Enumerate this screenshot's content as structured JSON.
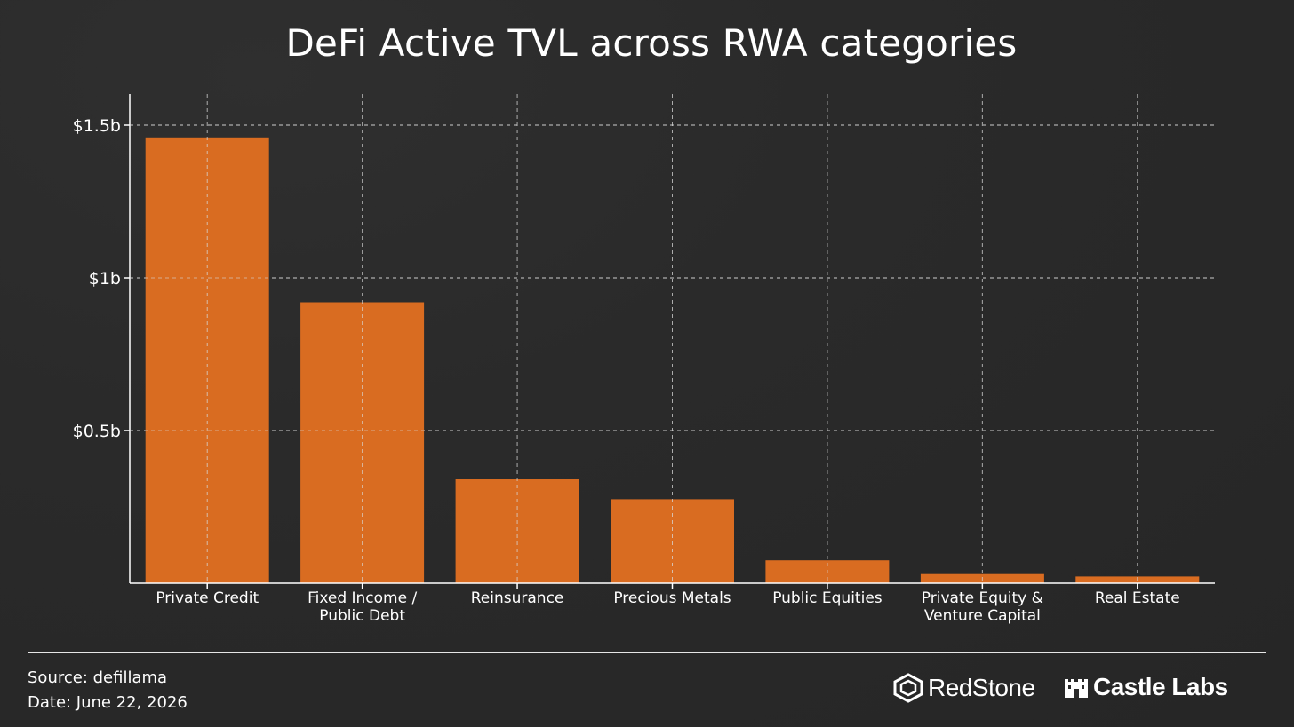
{
  "chart_data": {
    "type": "bar",
    "title": "DeFi Active TVL across RWA categories",
    "categories": [
      [
        "Private Credit"
      ],
      [
        "Fixed Income /",
        "Public Debt"
      ],
      [
        "Reinsurance"
      ],
      [
        "Precious Metals"
      ],
      [
        "Public Equities"
      ],
      [
        "Private Equity &",
        "Venture Capital"
      ],
      [
        "Real Estate"
      ]
    ],
    "values": [
      1.46,
      0.92,
      0.34,
      0.275,
      0.075,
      0.03,
      0.022
    ],
    "units": "billion USD",
    "ylim": [
      0,
      1.6
    ],
    "yticks": [
      0.5,
      1.0,
      1.5
    ],
    "ytick_labels": [
      "$0.5b",
      "$1b",
      "$1.5b"
    ],
    "xlabel": "",
    "ylabel": "",
    "grid": true,
    "legend": "none",
    "bar_color": "#d96c21"
  },
  "footer": {
    "source": "Source: defillama",
    "date": "Date: June 22, 2026"
  },
  "logos": {
    "redstone": "RedStone",
    "castle": "Castle Labs"
  }
}
